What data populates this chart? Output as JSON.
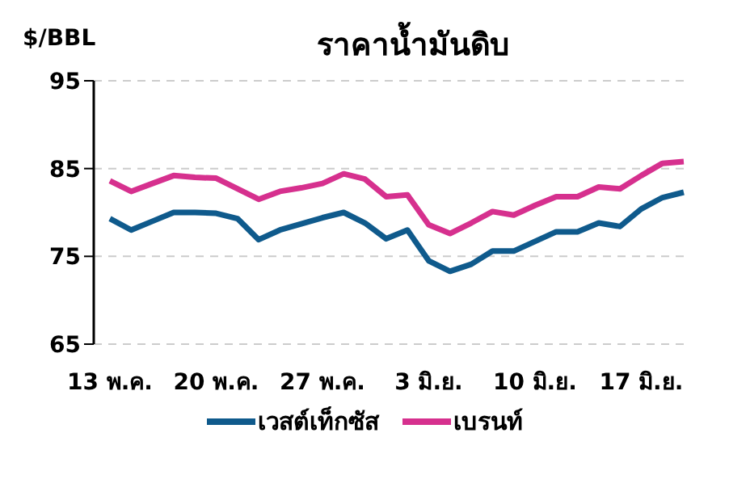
{
  "chart_data": {
    "type": "line",
    "title": "ราคาน้ำมันดิบ",
    "ylabel": "$/BBL",
    "categories": [
      "13 พ.ค.",
      null,
      null,
      null,
      null,
      "20 พ.ค.",
      null,
      null,
      null,
      null,
      "27 พ.ค.",
      null,
      null,
      null,
      null,
      "3 มิ.ย.",
      null,
      null,
      null,
      null,
      "10 มิ.ย.",
      null,
      null,
      null,
      null,
      "17 มิ.ย.",
      null,
      null
    ],
    "series": [
      {
        "name": "เวสต์เท็กซัส",
        "color": "#0f5a8c",
        "values": [
          79.3,
          78.0,
          79.0,
          80.0,
          80.0,
          79.9,
          79.3,
          76.9,
          78.0,
          78.7,
          79.4,
          80.0,
          78.8,
          77.0,
          78.0,
          74.5,
          73.3,
          74.1,
          75.6,
          75.6,
          76.7,
          77.8,
          77.8,
          78.8,
          78.4,
          80.4,
          81.7,
          82.3
        ]
      },
      {
        "name": "เบรนท์",
        "color": "#d6308e",
        "values": [
          83.6,
          82.4,
          83.3,
          84.2,
          84.0,
          83.9,
          82.7,
          81.5,
          82.4,
          82.8,
          83.3,
          84.4,
          83.8,
          81.8,
          82.0,
          78.6,
          77.6,
          78.8,
          80.1,
          79.7,
          80.8,
          81.8,
          81.8,
          82.9,
          82.7,
          84.2,
          85.6,
          85.8
        ]
      }
    ],
    "ylim": [
      65,
      95
    ],
    "yticks": [
      65,
      75,
      85,
      95
    ],
    "grid": "y",
    "legend": "bottom",
    "marker": "none",
    "line_style": "solid"
  }
}
